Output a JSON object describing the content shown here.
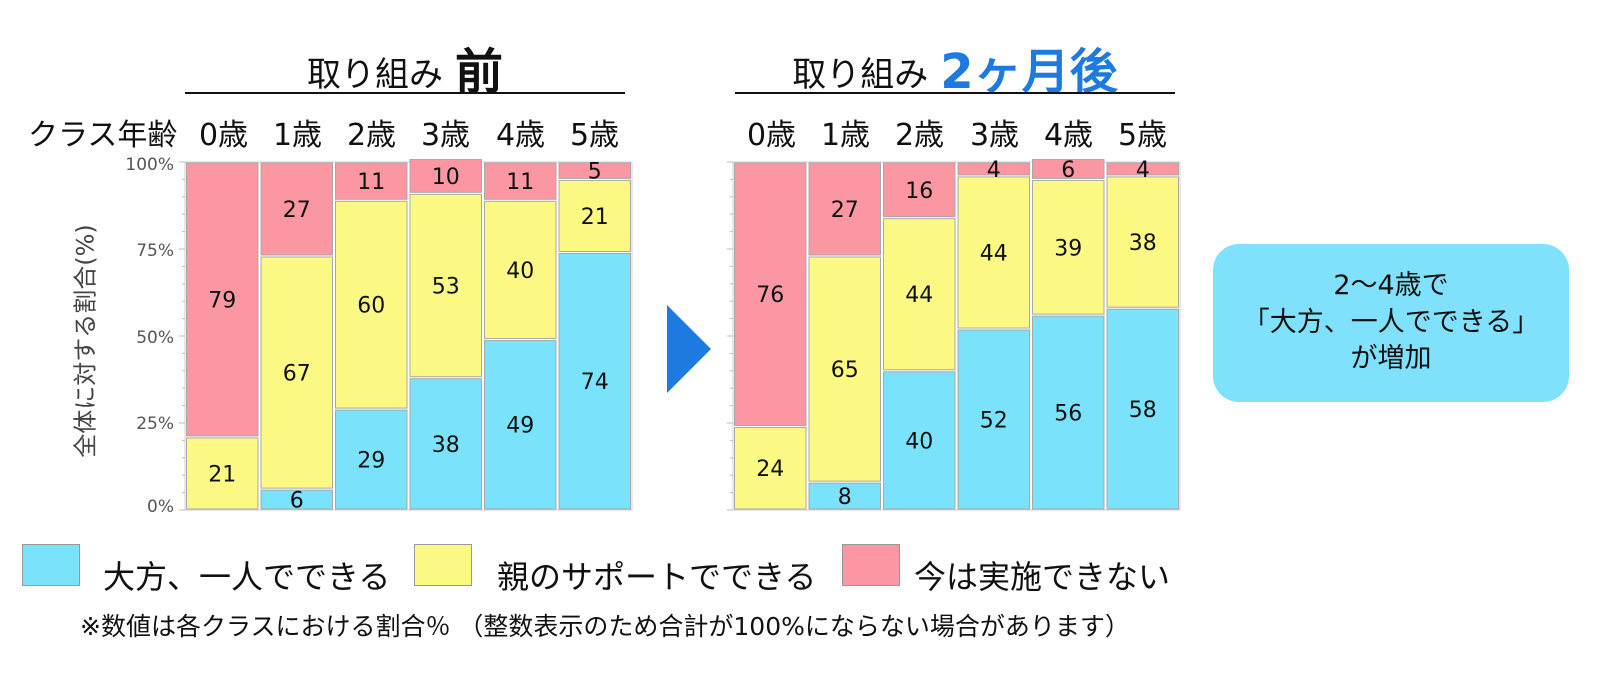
{
  "header": {
    "row_label": "クラス年齢",
    "before_title_prefix": "取り組み",
    "before_title_emph": "前",
    "after_title_prefix": "取り組み",
    "after_title_emph": "2ヶ月後"
  },
  "axis": {
    "ylabel": "全体に対する割合(%)",
    "ticks": [
      "100%",
      "75%",
      "50%",
      "25%",
      "0%"
    ]
  },
  "colors": {
    "independent": "#7ae2fb",
    "with_support": "#fbf983",
    "cannot": "#fb97a3",
    "accent": "#1f7ae0"
  },
  "legend": [
    {
      "label": "大方、一人でできる",
      "color": "#7ae2fb"
    },
    {
      "label": "親のサポートでできる",
      "color": "#fbf983"
    },
    {
      "label": "今は実施できない",
      "color": "#fb97a3"
    }
  ],
  "note": "※数値は各クラスにおける割合％ （整数表示のため合計が100%にならない場合があります）",
  "callout": {
    "line1": "2〜4歳で",
    "line2": "「大方、一人でできる」",
    "line3": "が増加"
  },
  "chart_data": [
    {
      "type": "bar",
      "stacked": true,
      "title": "取り組み 前",
      "categories": [
        "0歳",
        "1歳",
        "2歳",
        "3歳",
        "4歳",
        "5歳"
      ],
      "ylim": [
        0,
        100
      ],
      "series": [
        {
          "name": "大方、一人でできる",
          "values": [
            0,
            6,
            29,
            38,
            49,
            74
          ]
        },
        {
          "name": "親のサポートでできる",
          "values": [
            21,
            67,
            60,
            53,
            40,
            21
          ]
        },
        {
          "name": "今は実施できない",
          "values": [
            79,
            27,
            11,
            10,
            11,
            5
          ]
        }
      ]
    },
    {
      "type": "bar",
      "stacked": true,
      "title": "取り組み 2ヶ月後",
      "categories": [
        "0歳",
        "1歳",
        "2歳",
        "3歳",
        "4歳",
        "5歳"
      ],
      "ylim": [
        0,
        100
      ],
      "series": [
        {
          "name": "大方、一人でできる",
          "values": [
            0,
            8,
            40,
            52,
            56,
            58
          ]
        },
        {
          "name": "親のサポートでできる",
          "values": [
            24,
            65,
            44,
            44,
            39,
            38
          ]
        },
        {
          "name": "今は実施できない",
          "values": [
            76,
            27,
            16,
            4,
            6,
            4
          ]
        }
      ]
    }
  ]
}
